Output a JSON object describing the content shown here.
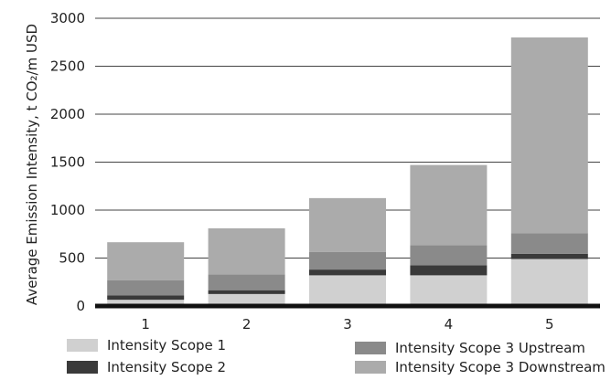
{
  "chart_data": {
    "type": "bar",
    "stacked": true,
    "title": "",
    "xlabel": "",
    "ylabel": "Average Emission Intensity, t CO₂/m USD",
    "categories": [
      "1",
      "2",
      "3",
      "4",
      "5"
    ],
    "ylim": [
      0,
      3000
    ],
    "yticks": [
      0,
      500,
      1000,
      1500,
      2000,
      2500,
      3000
    ],
    "grid": true,
    "legend_position": "bottom",
    "series": [
      {
        "name": "Intensity Scope 1",
        "color": "#d0d0d0",
        "values": [
          65,
          125,
          320,
          320,
          490
        ]
      },
      {
        "name": "Intensity Scope 2",
        "color": "#3a3a3a",
        "values": [
          45,
          40,
          60,
          105,
          55
        ]
      },
      {
        "name": "Intensity Scope 3 Upstream",
        "color": "#8a8a8a",
        "values": [
          160,
          165,
          185,
          210,
          215
        ]
      },
      {
        "name": "Intensity Scope 3 Downstream",
        "color": "#ababab",
        "values": [
          395,
          480,
          560,
          835,
          2040
        ]
      }
    ]
  }
}
